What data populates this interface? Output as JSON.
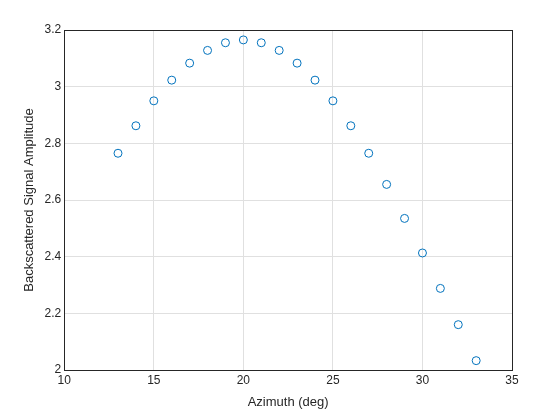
{
  "chart_data": {
    "type": "scatter",
    "x_label": "Azimuth (deg)",
    "y_label": "Backscattered Signal Amplitude",
    "x": [
      13,
      14,
      15,
      16,
      17,
      18,
      19,
      20,
      21,
      22,
      23,
      24,
      25,
      26,
      27,
      28,
      29,
      30,
      31,
      32,
      33
    ],
    "values": [
      2.765,
      2.862,
      2.95,
      3.023,
      3.083,
      3.128,
      3.155,
      3.165,
      3.155,
      3.128,
      3.083,
      3.023,
      2.95,
      2.862,
      2.765,
      2.655,
      2.535,
      2.413,
      2.288,
      2.16,
      2.033
    ],
    "color": "#0072bd",
    "marker": "circle",
    "xlim": [
      10,
      35
    ],
    "xticks": [
      10,
      15,
      20,
      25,
      30,
      35
    ],
    "ylim": [
      2,
      3.2
    ],
    "yticks": [
      2,
      2.2,
      2.4,
      2.6,
      2.8,
      3,
      3.2
    ],
    "grid": true
  }
}
